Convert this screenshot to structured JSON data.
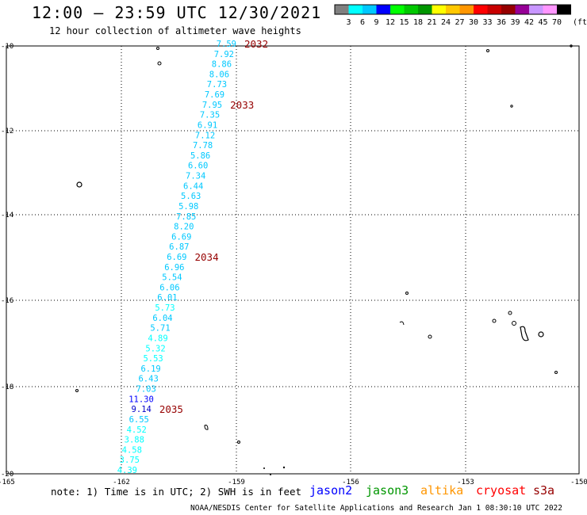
{
  "header": {
    "title": "12:00 – 23:59 UTC 12/30/2021",
    "subtitle": "12 hour collection of altimeter wave heights"
  },
  "colorbar": {
    "colors": [
      "#808080",
      "#00ffff",
      "#00c8ff",
      "#0000ff",
      "#00ff00",
      "#00c800",
      "#009600",
      "#ffff00",
      "#ffc800",
      "#ff9600",
      "#ff0000",
      "#c80000",
      "#960000",
      "#960096",
      "#c896ff",
      "#ff96ff",
      "#000000"
    ],
    "labels": [
      "3",
      "6",
      "9",
      "12",
      "15",
      "18",
      "21",
      "24",
      "27",
      "30",
      "33",
      "36",
      "39",
      "42",
      "45",
      "70"
    ],
    "unit": "(ft)"
  },
  "axes": {
    "lat_labels": [
      "-10",
      "-12",
      "-14",
      "-16",
      "-18",
      "-20"
    ],
    "lon_labels": [
      "-165",
      "-162",
      "-159",
      "-156",
      "-153",
      "-150"
    ]
  },
  "track_points": [
    {
      "v": "7.59",
      "c": "#00c8ff"
    },
    {
      "v": "7.92",
      "c": "#00c8ff"
    },
    {
      "v": "8.86",
      "c": "#00c8ff"
    },
    {
      "v": "8.06",
      "c": "#00c8ff"
    },
    {
      "v": "7.73",
      "c": "#00c8ff"
    },
    {
      "v": "7.69",
      "c": "#00c8ff"
    },
    {
      "v": "7.95",
      "c": "#00c8ff"
    },
    {
      "v": "7.35",
      "c": "#00c8ff"
    },
    {
      "v": "6.91",
      "c": "#00c8ff"
    },
    {
      "v": "7.12",
      "c": "#00c8ff"
    },
    {
      "v": "7.78",
      "c": "#00c8ff"
    },
    {
      "v": "5.86",
      "c": "#00c8ff"
    },
    {
      "v": "6.60",
      "c": "#00c8ff"
    },
    {
      "v": "7.34",
      "c": "#00c8ff"
    },
    {
      "v": "6.44",
      "c": "#00c8ff"
    },
    {
      "v": "5.63",
      "c": "#00c8ff"
    },
    {
      "v": "5.98",
      "c": "#00c8ff"
    },
    {
      "v": "7.85",
      "c": "#00c8ff"
    },
    {
      "v": "8.20",
      "c": "#00c8ff"
    },
    {
      "v": "6.69",
      "c": "#00c8ff"
    },
    {
      "v": "6.87",
      "c": "#00c8ff"
    },
    {
      "v": "6.69",
      "c": "#00c8ff"
    },
    {
      "v": "6.96",
      "c": "#00c8ff"
    },
    {
      "v": "5.54",
      "c": "#00c8ff"
    },
    {
      "v": "6.06",
      "c": "#00c8ff"
    },
    {
      "v": "6.01",
      "c": "#00c8ff"
    },
    {
      "v": "5.73",
      "c": "#00ffff"
    },
    {
      "v": "6.04",
      "c": "#00c8ff"
    },
    {
      "v": "5.71",
      "c": "#00c8ff"
    },
    {
      "v": "4.89",
      "c": "#00ffff"
    },
    {
      "v": "5.32",
      "c": "#00ffff"
    },
    {
      "v": "5.53",
      "c": "#00ffff"
    },
    {
      "v": "6.19",
      "c": "#00c8ff"
    },
    {
      "v": "6.43",
      "c": "#00c8ff"
    },
    {
      "v": "7.03",
      "c": "#00c8ff"
    },
    {
      "v": "11.30",
      "c": "#0000ff"
    },
    {
      "v": "9.14",
      "c": "#0000c8"
    },
    {
      "v": "6.55",
      "c": "#00c8ff"
    },
    {
      "v": "4.52",
      "c": "#00ffff"
    },
    {
      "v": "3.88",
      "c": "#00ffff"
    },
    {
      "v": "4.58",
      "c": "#00ffff"
    },
    {
      "v": "3.75",
      "c": "#00ffff"
    },
    {
      "v": "4.39",
      "c": "#00ffff"
    }
  ],
  "time_labels": [
    "2032",
    "2033",
    "2034",
    "2035"
  ],
  "time_label_color": "#960000",
  "note": "note:  1) Time is in UTC; 2) SWH is in feet",
  "satellites": [
    {
      "name": "jason2",
      "color": "#0000ff"
    },
    {
      "name": "jason3",
      "color": "#009600"
    },
    {
      "name": "altika",
      "color": "#ff9600"
    },
    {
      "name": "cryosat",
      "color": "#ff0000"
    },
    {
      "name": "s3a",
      "color": "#960000"
    }
  ],
  "footer": "NOAA/NESDIS Center for Satellite Applications and Research   Jan  1 08:30:10 UTC 2022"
}
